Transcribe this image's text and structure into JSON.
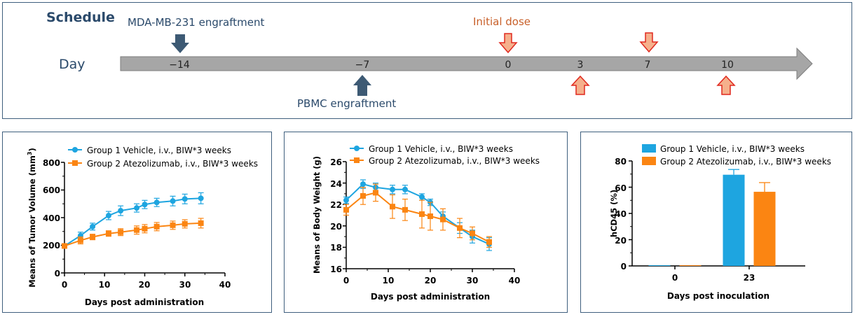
{
  "schedule": {
    "title": "Schedule",
    "day_label": "Day",
    "engraftment_label": "MDA-MB-231 engraftment",
    "pbmc_label": "PBMC engraftment",
    "initial_dose_label": "Initial dose",
    "days": [
      "−14",
      "−7",
      "0",
      "3",
      "7",
      "10"
    ],
    "colors": {
      "dark_arrow": "#3d5a74",
      "dose_fill": "#f5b08c",
      "dose_stroke": "#e0281e",
      "dose_text": "#c8602a",
      "timeline": "#a6a6a6",
      "title": "#2b4a6b"
    }
  },
  "charts": [
    {
      "type": "line",
      "xlabel": "Days post administration",
      "ylabel_main": "Means of Tumor Volume (mm",
      "ylabel_sup": "3",
      "ylabel_end": ")",
      "xticks": [
        "0",
        "10",
        "20",
        "30",
        "40"
      ],
      "yticks": [
        "0",
        "200",
        "400",
        "600",
        "800"
      ],
      "xlim": [
        0,
        40
      ],
      "ylim": [
        0,
        800
      ],
      "legend": [
        "Group 1 Vehicle, i.v., BIW*3 weeks",
        "Group 2 Atezolizumab, i.v., BIW*3 weeks"
      ]
    },
    {
      "type": "line",
      "xlabel": "Days post administration",
      "ylabel": "Means of Body Weight (g)",
      "xticks": [
        "0",
        "10",
        "20",
        "30",
        "40"
      ],
      "yticks": [
        "16",
        "18",
        "20",
        "22",
        "24",
        "26"
      ],
      "xlim": [
        0,
        40
      ],
      "ylim": [
        16,
        26
      ],
      "legend": [
        "Group 1 Vehicle, i.v., BIW*3 weeks",
        "Group 2 Atezolizumab, i.v., BIW*3 weeks"
      ]
    },
    {
      "type": "bar",
      "xlabel": "Days post inoculation",
      "ylabel": "hCD45 (%)",
      "xticks": [
        "0",
        "23"
      ],
      "yticks": [
        "0",
        "20",
        "40",
        "60",
        "80"
      ],
      "ylim": [
        0,
        80
      ],
      "legend": [
        "Group 1 Vehicle, i.v., BIW*3 weeks",
        "Group 2 Atezolizumab, i.v., BIW*3 weeks"
      ]
    }
  ],
  "chart_data": [
    {
      "type": "line",
      "title": "",
      "xlabel": "Days post administration",
      "ylabel": "Means of Tumor Volume (mm3)",
      "xlim": [
        0,
        40
      ],
      "ylim": [
        0,
        800
      ],
      "series": [
        {
          "name": "Group 1 Vehicle, i.v., BIW*3 weeks",
          "color": "#1ea5e0",
          "marker": "circle",
          "x": [
            0,
            4,
            7,
            11,
            14,
            18,
            20,
            23,
            27,
            30,
            34
          ],
          "y": [
            195,
            270,
            335,
            415,
            450,
            470,
            495,
            510,
            520,
            535,
            540
          ],
          "err": [
            10,
            25,
            25,
            30,
            35,
            30,
            30,
            30,
            35,
            35,
            40
          ]
        },
        {
          "name": "Group 2 Atezolizumab, i.v., BIW*3 weeks",
          "color": "#fb8512",
          "marker": "square",
          "x": [
            0,
            4,
            7,
            11,
            14,
            18,
            20,
            23,
            27,
            30,
            34
          ],
          "y": [
            195,
            235,
            260,
            285,
            295,
            310,
            320,
            335,
            345,
            355,
            360
          ],
          "err": [
            10,
            25,
            20,
            20,
            25,
            30,
            30,
            30,
            30,
            30,
            35
          ]
        }
      ]
    },
    {
      "type": "line",
      "title": "",
      "xlabel": "Days post administration",
      "ylabel": "Means of Body Weight (g)",
      "xlim": [
        0,
        40
      ],
      "ylim": [
        16,
        26
      ],
      "series": [
        {
          "name": "Group 1 Vehicle, i.v., BIW*3 weeks",
          "color": "#1ea5e0",
          "marker": "circle",
          "x": [
            0,
            4,
            7,
            11,
            14,
            18,
            20,
            23,
            27,
            30,
            34
          ],
          "y": [
            22.4,
            23.9,
            23.6,
            23.4,
            23.4,
            22.7,
            22.2,
            20.9,
            19.8,
            19.0,
            18.3
          ],
          "err": [
            0.3,
            0.4,
            0.4,
            0.4,
            0.4,
            0.3,
            0.3,
            0.4,
            0.5,
            0.6,
            0.6
          ]
        },
        {
          "name": "Group 2 Atezolizumab, i.v., BIW*3 weeks",
          "color": "#fb8512",
          "marker": "square",
          "x": [
            0,
            4,
            7,
            11,
            14,
            18,
            20,
            23,
            27,
            30,
            34
          ],
          "y": [
            21.5,
            22.8,
            23.1,
            21.8,
            21.5,
            21.1,
            20.9,
            20.6,
            19.8,
            19.3,
            18.5
          ],
          "err": [
            0.5,
            0.8,
            0.8,
            1.1,
            1.0,
            1.3,
            1.3,
            1.0,
            0.9,
            0.6,
            0.5
          ]
        }
      ]
    },
    {
      "type": "bar",
      "title": "",
      "xlabel": "Days post inoculation",
      "ylabel": "hCD45 (%)",
      "categories": [
        "0",
        "23"
      ],
      "ylim": [
        0,
        80
      ],
      "series": [
        {
          "name": "Group 1 Vehicle, i.v., BIW*3 weeks",
          "color": "#1ea5e0",
          "values": [
            0.3,
            69.5
          ],
          "err": [
            0,
            4
          ]
        },
        {
          "name": "Group 2 Atezolizumab, i.v., BIW*3 weeks",
          "color": "#fb8512",
          "values": [
            0.5,
            56.5
          ],
          "err": [
            0,
            7
          ]
        }
      ]
    }
  ]
}
